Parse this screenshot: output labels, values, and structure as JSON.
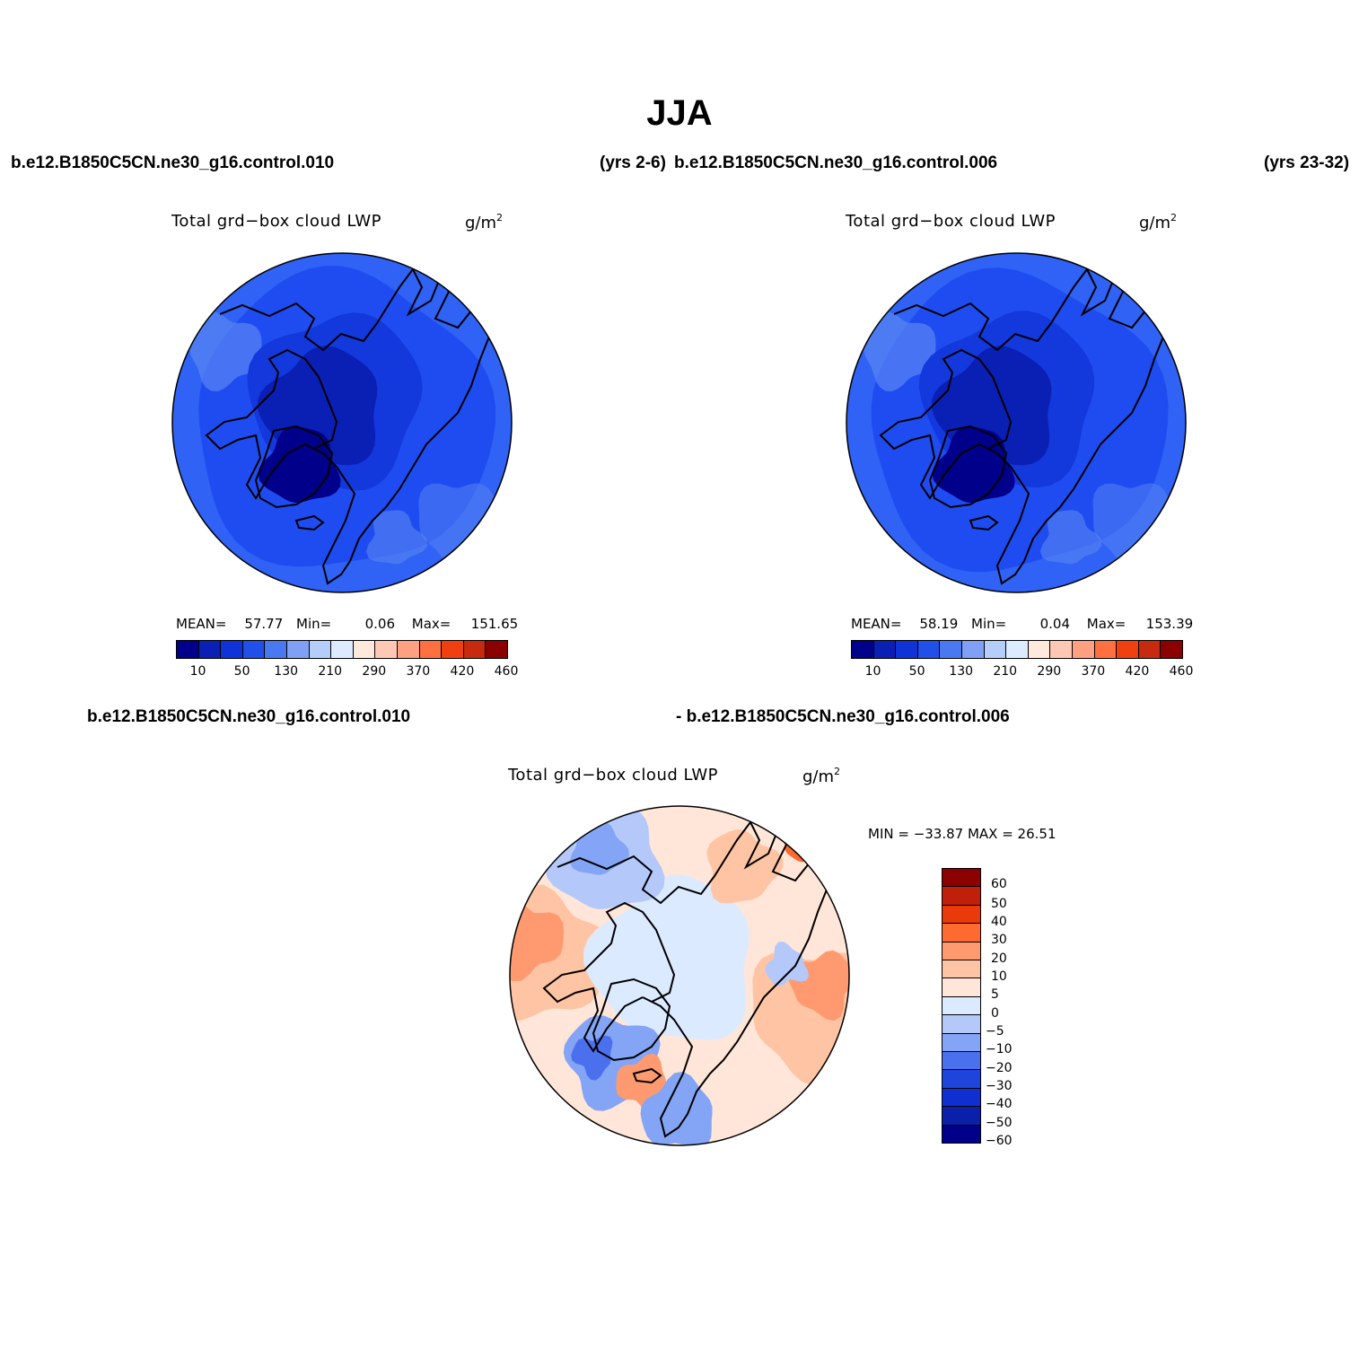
{
  "title": "JJA",
  "headers": {
    "top_left_case": "b.e12.B1850C5CN.ne30_g16.control.010",
    "top_left_years": "(yrs 2-6)",
    "top_right_case": "b.e12.B1850C5CN.ne30_g16.control.006",
    "top_right_years": "(yrs 23-32)",
    "diff_case_a": "b.e12.B1850C5CN.ne30_g16.control.010",
    "diff_case_b": "- b.e12.B1850C5CN.ne30_g16.control.006"
  },
  "panels": [
    {
      "id": "case-010",
      "variable": "Total grd−box cloud LWP",
      "units": "g/m",
      "units_exp": "2",
      "stats": {
        "mean_label": "MEAN=",
        "mean": "57.77",
        "min_label": "Min=",
        "min": "0.06",
        "max_label": "Max=",
        "max": "151.65"
      }
    },
    {
      "id": "case-006",
      "variable": "Total grd−box cloud LWP",
      "units": "g/m",
      "units_exp": "2",
      "stats": {
        "mean_label": "MEAN=",
        "mean": "58.19",
        "min_label": "Min=",
        "min": "0.04",
        "max_label": "Max=",
        "max": "153.39"
      }
    },
    {
      "id": "difference",
      "variable": "Total grd−box cloud LWP",
      "units": "g/m",
      "units_exp": "2",
      "stats_line": "MIN = −33.87 MAX =  26.51"
    }
  ],
  "colorbar_abs": {
    "colors": [
      "#00008b",
      "#0a1fb4",
      "#0f33d6",
      "#2050e8",
      "#4a78f0",
      "#7fa0f5",
      "#b4cdfa",
      "#dcebff",
      "#ffe8dc",
      "#ffc8b4",
      "#ffa080",
      "#ff7040",
      "#f04010",
      "#c82a10",
      "#8b0000"
    ],
    "labels": [
      "10",
      "50",
      "130",
      "210",
      "290",
      "370",
      "420",
      "460"
    ]
  },
  "colorbar_diff": {
    "colors": [
      "#8b0000",
      "#c0200a",
      "#e83a0a",
      "#ff6a30",
      "#ff9a70",
      "#ffc4a4",
      "#ffe6d8",
      "#dceaff",
      "#b4c8fa",
      "#84a4f5",
      "#4a70ee",
      "#1e44dc",
      "#0f2fd0",
      "#0a1faa",
      "#00008b"
    ],
    "labels": [
      "60",
      "50",
      "40",
      "30",
      "20",
      "10",
      "5",
      "0",
      "−5",
      "−10",
      "−20",
      "−30",
      "−40",
      "−50",
      "−60"
    ]
  },
  "map_colors": {
    "dark": "#00008b",
    "deep": "#0a1fb4",
    "mid": "#1338dc",
    "base": "#1f4cf0",
    "light": "#2f62f5",
    "lighter": "#5a86f3",
    "diff_pos_strong": "#ff6a30",
    "diff_pos": "#ff9a70",
    "diff_pos_weak": "#ffc4a4",
    "diff_near_pos": "#ffe6d8",
    "diff_near_neg": "#dceaff",
    "diff_neg_weak": "#b4c8fa",
    "diff_neg": "#84a4f5",
    "diff_neg_strong": "#4a70ee"
  }
}
